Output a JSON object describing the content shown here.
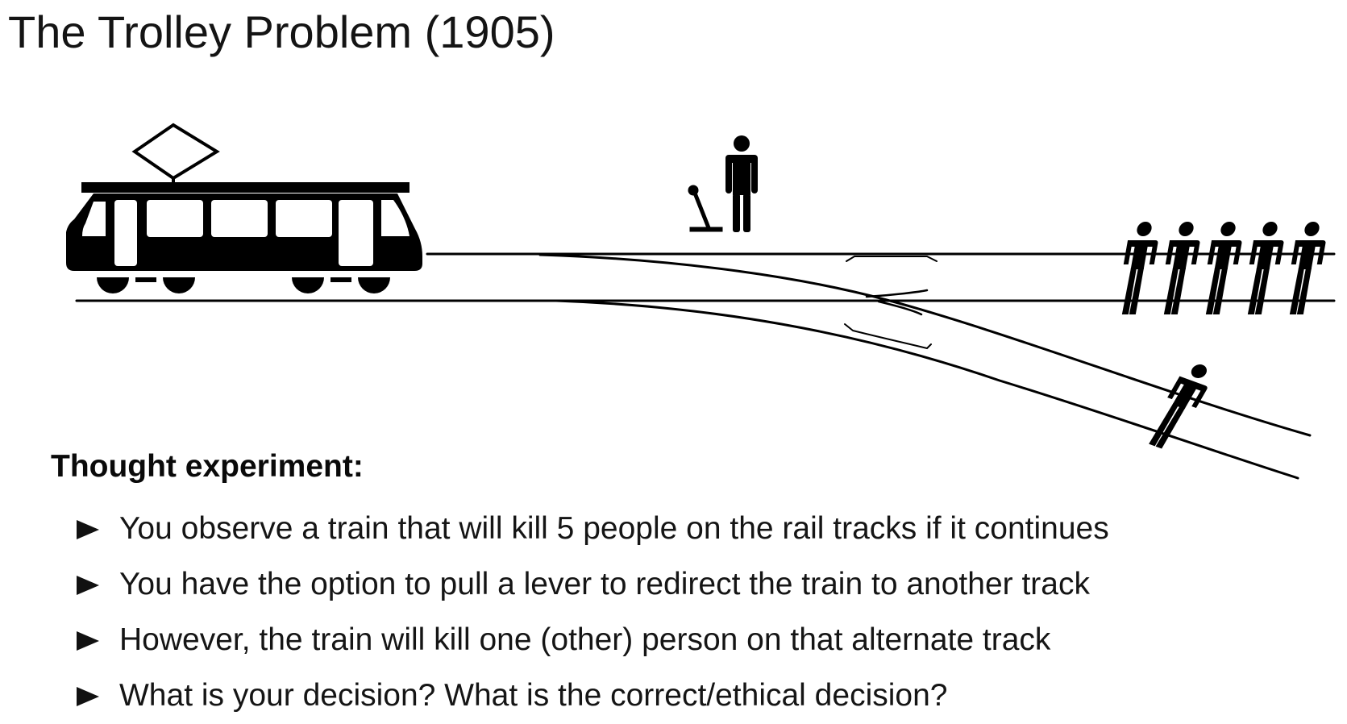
{
  "slide": {
    "title": "The Trolley Problem (1905)"
  },
  "illustration": {
    "ink_color": "#000000",
    "icons": [
      "trolley-icon",
      "lever-icon",
      "bystander-person-icon",
      "five-people-icon",
      "single-person-icon"
    ]
  },
  "content": {
    "heading": "Thought experiment:",
    "bullets": [
      {
        "text": "You observe a train that will kill 5 people on the rail tracks if it continues"
      },
      {
        "text": "You have the option to pull a lever to redirect the train to another track"
      },
      {
        "text": "However, the train will kill one (other) person on that alternate track"
      },
      {
        "text": "What is your decision? What is the correct/ethical decision?"
      }
    ]
  }
}
